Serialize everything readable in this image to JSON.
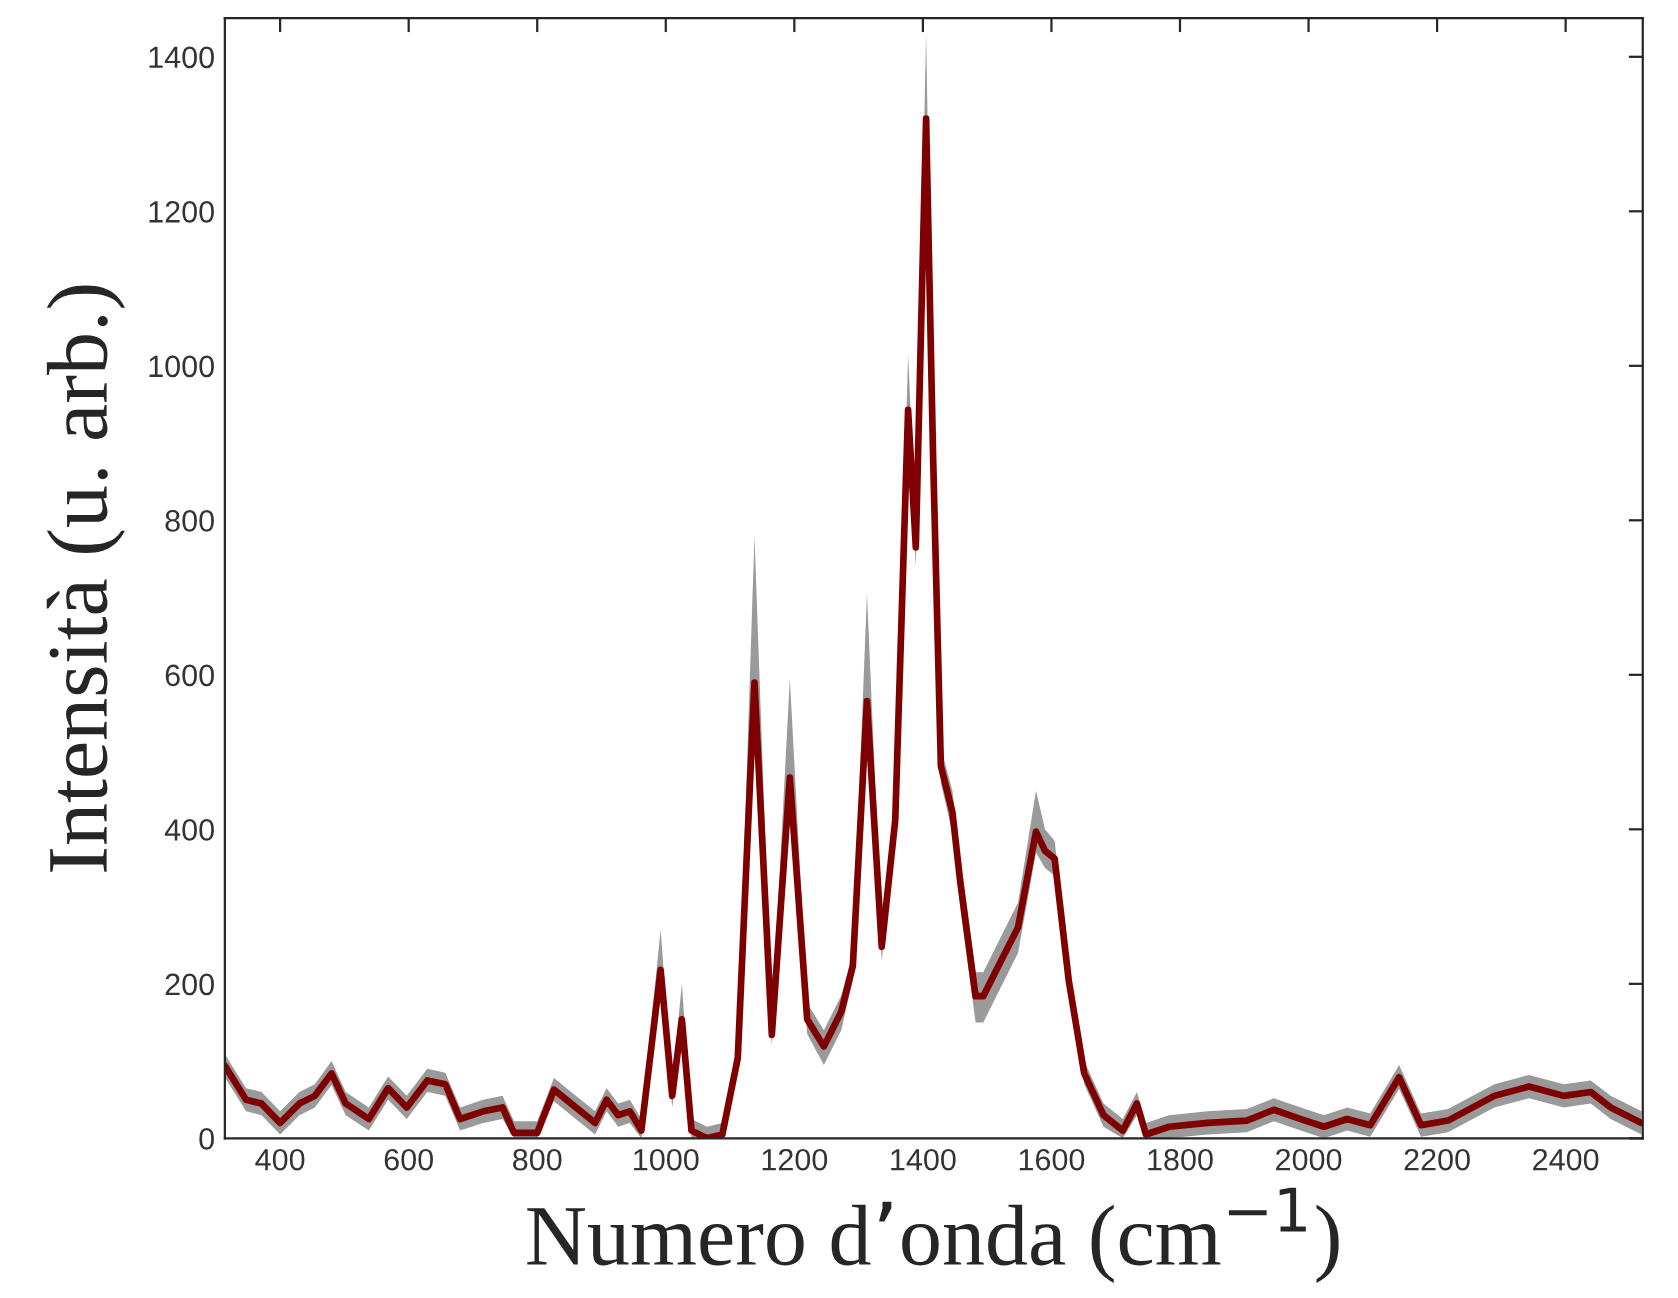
{
  "chart_data": {
    "type": "line",
    "xlabel": "Numero d’onda (cm$^{−1}$)",
    "ylabel": "Intensità (u. arb.)",
    "xlim": [
      314,
      2520
    ],
    "ylim": [
      0,
      1450
    ],
    "xticks": [
      400,
      600,
      800,
      1000,
      1200,
      1400,
      1600,
      1800,
      2000,
      2200,
      2400
    ],
    "yticks": [
      0,
      200,
      400,
      600,
      800,
      1000,
      1200,
      1400
    ],
    "grid": false,
    "legend": false,
    "marker": "none",
    "line_style": "solid",
    "series": [
      {
        "color": "#7f0000",
        "x": [
          314,
          347,
          371,
          400,
          430,
          454,
          480,
          502,
          538,
          568,
          597,
          629,
          657,
          680,
          716,
          746,
          764,
          800,
          826,
          860,
          890,
          908,
          926,
          944,
          962,
          992,
          1010,
          1025,
          1040,
          1064,
          1088,
          1112,
          1138,
          1165,
          1193,
          1220,
          1246,
          1273,
          1291,
          1313,
          1336,
          1357,
          1377,
          1389,
          1405,
          1416,
          1428,
          1446,
          1458,
          1482,
          1494,
          1512,
          1548,
          1576,
          1590,
          1605,
          1627,
          1651,
          1681,
          1711,
          1733,
          1747,
          1783,
          1843,
          1904,
          1946,
          1988,
          2024,
          2060,
          2096,
          2141,
          2175,
          2217,
          2289,
          2343,
          2397,
          2439,
          2470,
          2518
        ],
        "values": [
          94,
          50,
          45,
          20,
          45,
          55,
          84,
          45,
          25,
          65,
          40,
          75,
          70,
          25,
          35,
          40,
          7,
          7,
          63,
          40,
          20,
          50,
          30,
          35,
          10,
          218,
          55,
          154,
          10,
          0,
          5,
          104,
          590,
          134,
          467,
          154,
          119,
          164,
          223,
          566,
          248,
          412,
          943,
          765,
          1320,
          879,
          482,
          422,
          333,
          184,
          184,
          214,
          273,
          397,
          372,
          362,
          204,
          84,
          30,
          10,
          45,
          5,
          15,
          20,
          23,
          37,
          25,
          15,
          25,
          17,
          79,
          17,
          23,
          55,
          67,
          55,
          60,
          40,
          20
        ],
        "lower": [
          79,
          35,
          30,
          5,
          30,
          40,
          69,
          30,
          10,
          50,
          25,
          60,
          55,
          10,
          20,
          25,
          0,
          0,
          48,
          25,
          5,
          35,
          15,
          20,
          0,
          200,
          40,
          140,
          0,
          0,
          0,
          90,
          570,
          120,
          450,
          135,
          95,
          140,
          205,
          550,
          230,
          395,
          920,
          740,
          1300,
          860,
          460,
          395,
          300,
          150,
          150,
          180,
          240,
          370,
          350,
          340,
          185,
          70,
          15,
          0,
          30,
          0,
          0,
          5,
          8,
          22,
          10,
          0,
          10,
          2,
          64,
          2,
          8,
          40,
          52,
          40,
          45,
          25,
          5
        ],
        "upper": [
          109,
          65,
          60,
          35,
          60,
          70,
          100,
          60,
          40,
          80,
          55,
          90,
          85,
          40,
          50,
          55,
          22,
          22,
          78,
          55,
          35,
          65,
          45,
          50,
          25,
          270,
          70,
          200,
          25,
          15,
          20,
          120,
          780,
          150,
          595,
          175,
          140,
          185,
          240,
          705,
          265,
          430,
          1015,
          790,
          1430,
          900,
          505,
          450,
          365,
          215,
          215,
          245,
          305,
          450,
          400,
          385,
          225,
          100,
          45,
          25,
          60,
          20,
          30,
          35,
          38,
          52,
          40,
          30,
          40,
          32,
          95,
          32,
          38,
          70,
          82,
          70,
          75,
          55,
          35
        ]
      }
    ]
  }
}
